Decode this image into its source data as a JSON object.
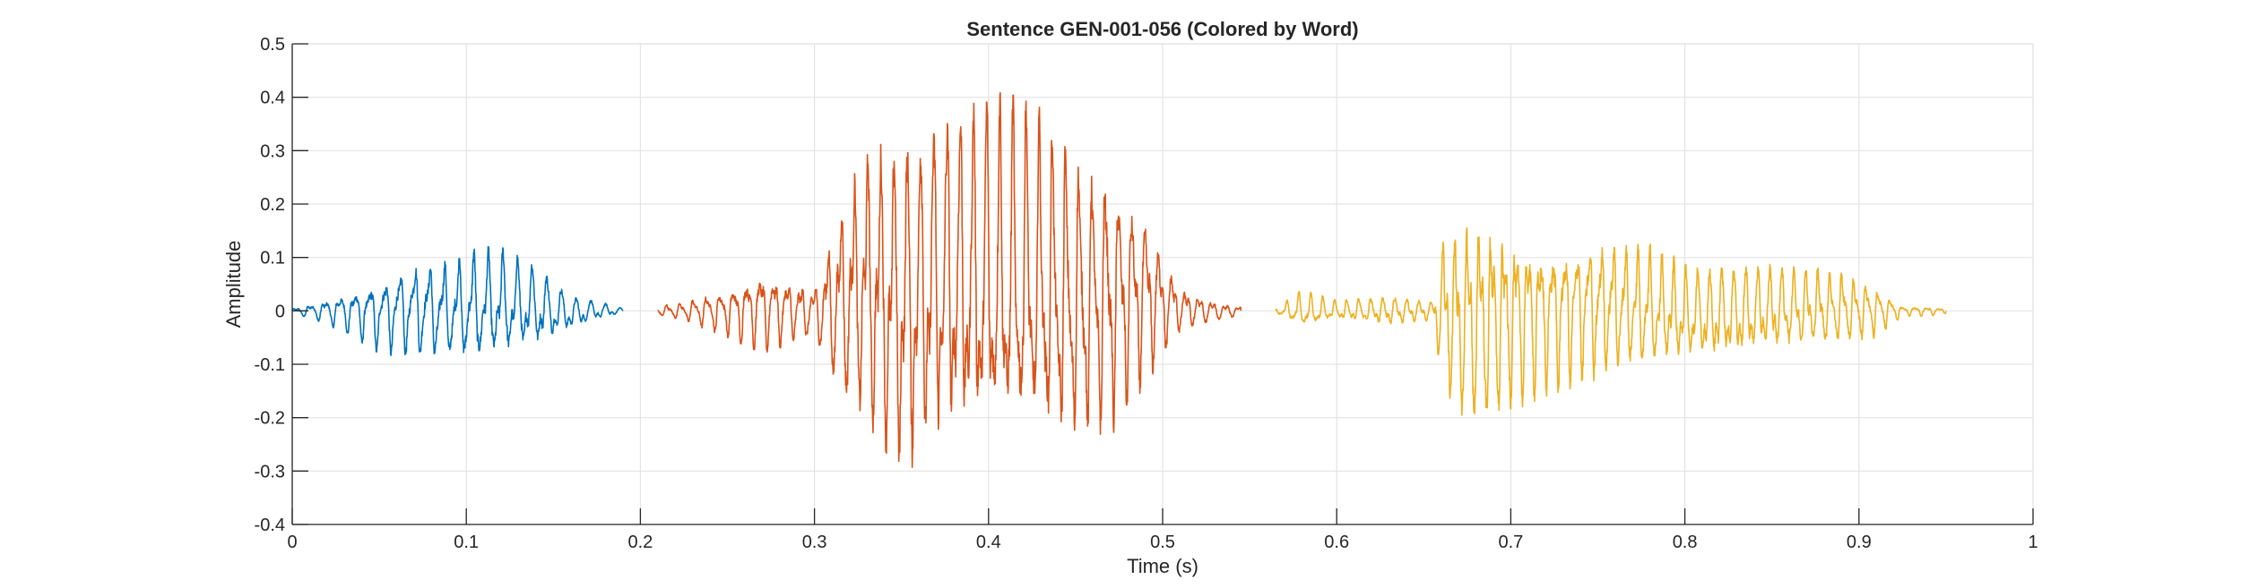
{
  "chart_data": {
    "type": "line",
    "title": "Sentence GEN-001-056 (Colored by Word)",
    "xlabel": "Time (s)",
    "ylabel": "Amplitude",
    "xlim": [
      0,
      1
    ],
    "ylim": [
      -0.4,
      0.5
    ],
    "xticks": [
      0,
      0.1,
      0.2,
      0.3,
      0.4,
      0.5,
      0.6,
      0.7,
      0.8,
      0.9,
      1
    ],
    "xtick_labels": [
      "0",
      "0.1",
      "0.2",
      "0.3",
      "0.4",
      "0.5",
      "0.6",
      "0.7",
      "0.8",
      "0.9",
      "1"
    ],
    "yticks": [
      -0.4,
      -0.3,
      -0.2,
      -0.1,
      0,
      0.1,
      0.2,
      0.3,
      0.4,
      0.5
    ],
    "ytick_labels": [
      "-0.4",
      "-0.3",
      "-0.2",
      "-0.1",
      "0",
      "0.1",
      "0.2",
      "0.3",
      "0.4",
      "0.5"
    ],
    "grid": true,
    "legend": "none",
    "series": [
      {
        "color": "#0072BD",
        "x_range": [
          0.0,
          0.19
        ],
        "envelope_x": [
          0.0,
          0.015,
          0.03,
          0.05,
          0.07,
          0.09,
          0.105,
          0.12,
          0.14,
          0.16,
          0.175,
          0.19
        ],
        "envelope_max": [
          0.005,
          0.02,
          0.04,
          0.07,
          0.1,
          0.1,
          0.12,
          0.12,
          0.09,
          0.03,
          0.02,
          0.005
        ],
        "envelope_min": [
          -0.005,
          -0.02,
          -0.04,
          -0.08,
          -0.09,
          -0.1,
          -0.11,
          -0.1,
          -0.08,
          -0.04,
          -0.02,
          -0.005
        ]
      },
      {
        "color": "#D95319",
        "x_range": [
          0.21,
          0.545
        ],
        "envelope_x": [
          0.21,
          0.225,
          0.25,
          0.27,
          0.3,
          0.315,
          0.33,
          0.35,
          0.37,
          0.39,
          0.41,
          0.43,
          0.45,
          0.47,
          0.49,
          0.51,
          0.53,
          0.545
        ],
        "envelope_max": [
          0.01,
          0.02,
          0.05,
          0.09,
          0.05,
          0.22,
          0.33,
          0.35,
          0.38,
          0.4,
          0.41,
          0.38,
          0.3,
          0.28,
          0.2,
          0.05,
          0.02,
          0.01
        ],
        "envelope_min": [
          -0.01,
          -0.02,
          -0.05,
          -0.08,
          -0.05,
          -0.18,
          -0.24,
          -0.35,
          -0.28,
          -0.3,
          -0.31,
          -0.3,
          -0.28,
          -0.24,
          -0.14,
          -0.04,
          -0.02,
          -0.01
        ]
      },
      {
        "color": "#EDB120",
        "x_range": [
          0.565,
          0.95
        ],
        "envelope_x": [
          0.565,
          0.58,
          0.6,
          0.63,
          0.655,
          0.66,
          0.67,
          0.68,
          0.7,
          0.72,
          0.75,
          0.78,
          0.8,
          0.83,
          0.86,
          0.89,
          0.91,
          0.925,
          0.94,
          0.95
        ],
        "envelope_max": [
          0.005,
          0.04,
          0.02,
          0.03,
          0.02,
          0.15,
          0.18,
          0.2,
          0.17,
          0.15,
          0.15,
          0.13,
          0.09,
          0.09,
          0.09,
          0.08,
          0.05,
          0.01,
          0.01,
          0.005
        ],
        "envelope_min": [
          -0.005,
          -0.04,
          -0.02,
          -0.03,
          -0.02,
          -0.15,
          -0.22,
          -0.24,
          -0.19,
          -0.16,
          -0.13,
          -0.12,
          -0.11,
          -0.1,
          -0.08,
          -0.07,
          -0.05,
          -0.01,
          -0.01,
          -0.005
        ]
      }
    ]
  }
}
